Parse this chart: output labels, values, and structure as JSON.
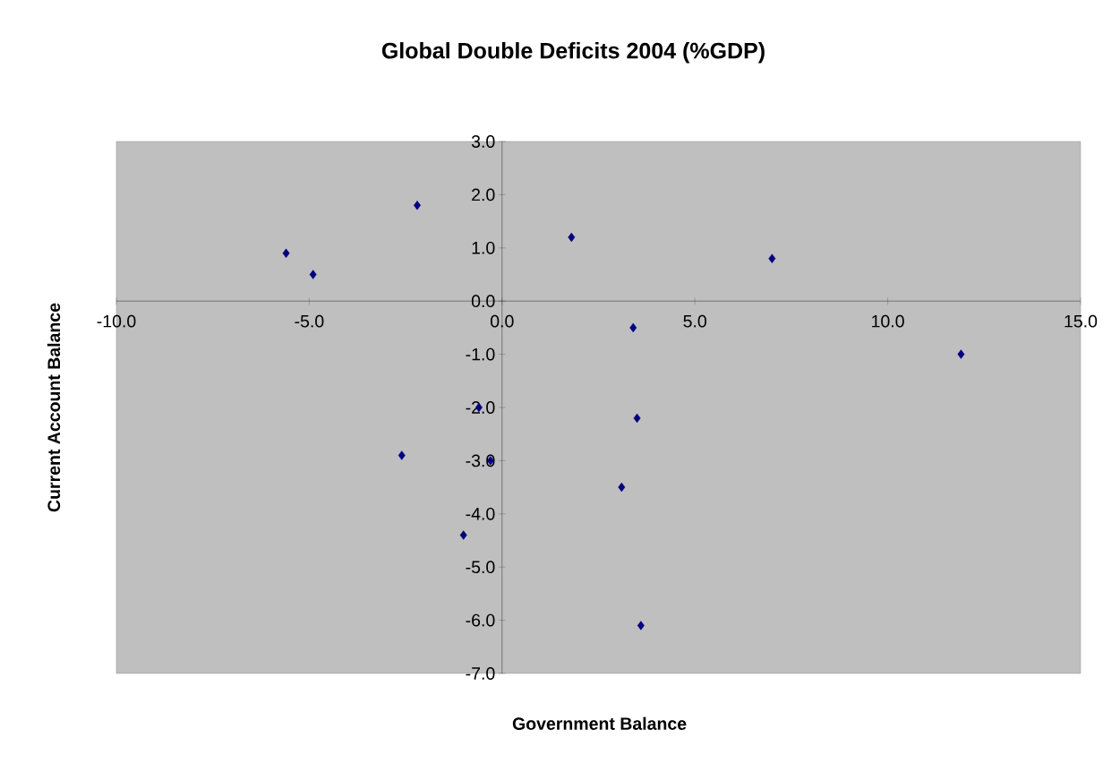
{
  "chart_data": {
    "type": "scatter",
    "title": "Global Double Deficits 2004 (%GDP)",
    "xlabel": "Government Balance",
    "ylabel": "Current Account Balance",
    "x": [
      -5.6,
      -4.9,
      -2.2,
      1.8,
      7.0,
      3.4,
      11.9,
      -0.6,
      3.5,
      -2.6,
      -0.3,
      3.1,
      -1.0,
      3.6
    ],
    "values": [
      0.9,
      0.5,
      1.8,
      1.2,
      0.8,
      -0.5,
      -1.0,
      -2.0,
      -2.2,
      -2.9,
      -3.0,
      -3.5,
      -4.4,
      -6.1
    ],
    "color": "#000080",
    "marker": "diamond",
    "xlim": [
      -10,
      15
    ],
    "xticks": [
      {
        "value": -10,
        "label": "-10.0"
      },
      {
        "value": -5,
        "label": "-5.0"
      },
      {
        "value": 0,
        "label": "0.0"
      },
      {
        "value": 5,
        "label": "5.0"
      },
      {
        "value": 10,
        "label": "10.0"
      },
      {
        "value": 15,
        "label": "15.0"
      }
    ],
    "ylim": [
      -7,
      3
    ],
    "yticks": [
      {
        "value": 3,
        "label": "3.0"
      },
      {
        "value": 2,
        "label": "2.0"
      },
      {
        "value": 1,
        "label": "1.0"
      },
      {
        "value": 0,
        "label": "0.0"
      },
      {
        "value": -1,
        "label": "-1.0"
      },
      {
        "value": -2,
        "label": "-2.0"
      },
      {
        "value": -3,
        "label": "-3.0"
      },
      {
        "value": -4,
        "label": "-4.0"
      },
      {
        "value": -5,
        "label": "-5.0"
      },
      {
        "value": -6,
        "label": "-6.0"
      },
      {
        "value": -7,
        "label": "-7.0"
      }
    ]
  }
}
